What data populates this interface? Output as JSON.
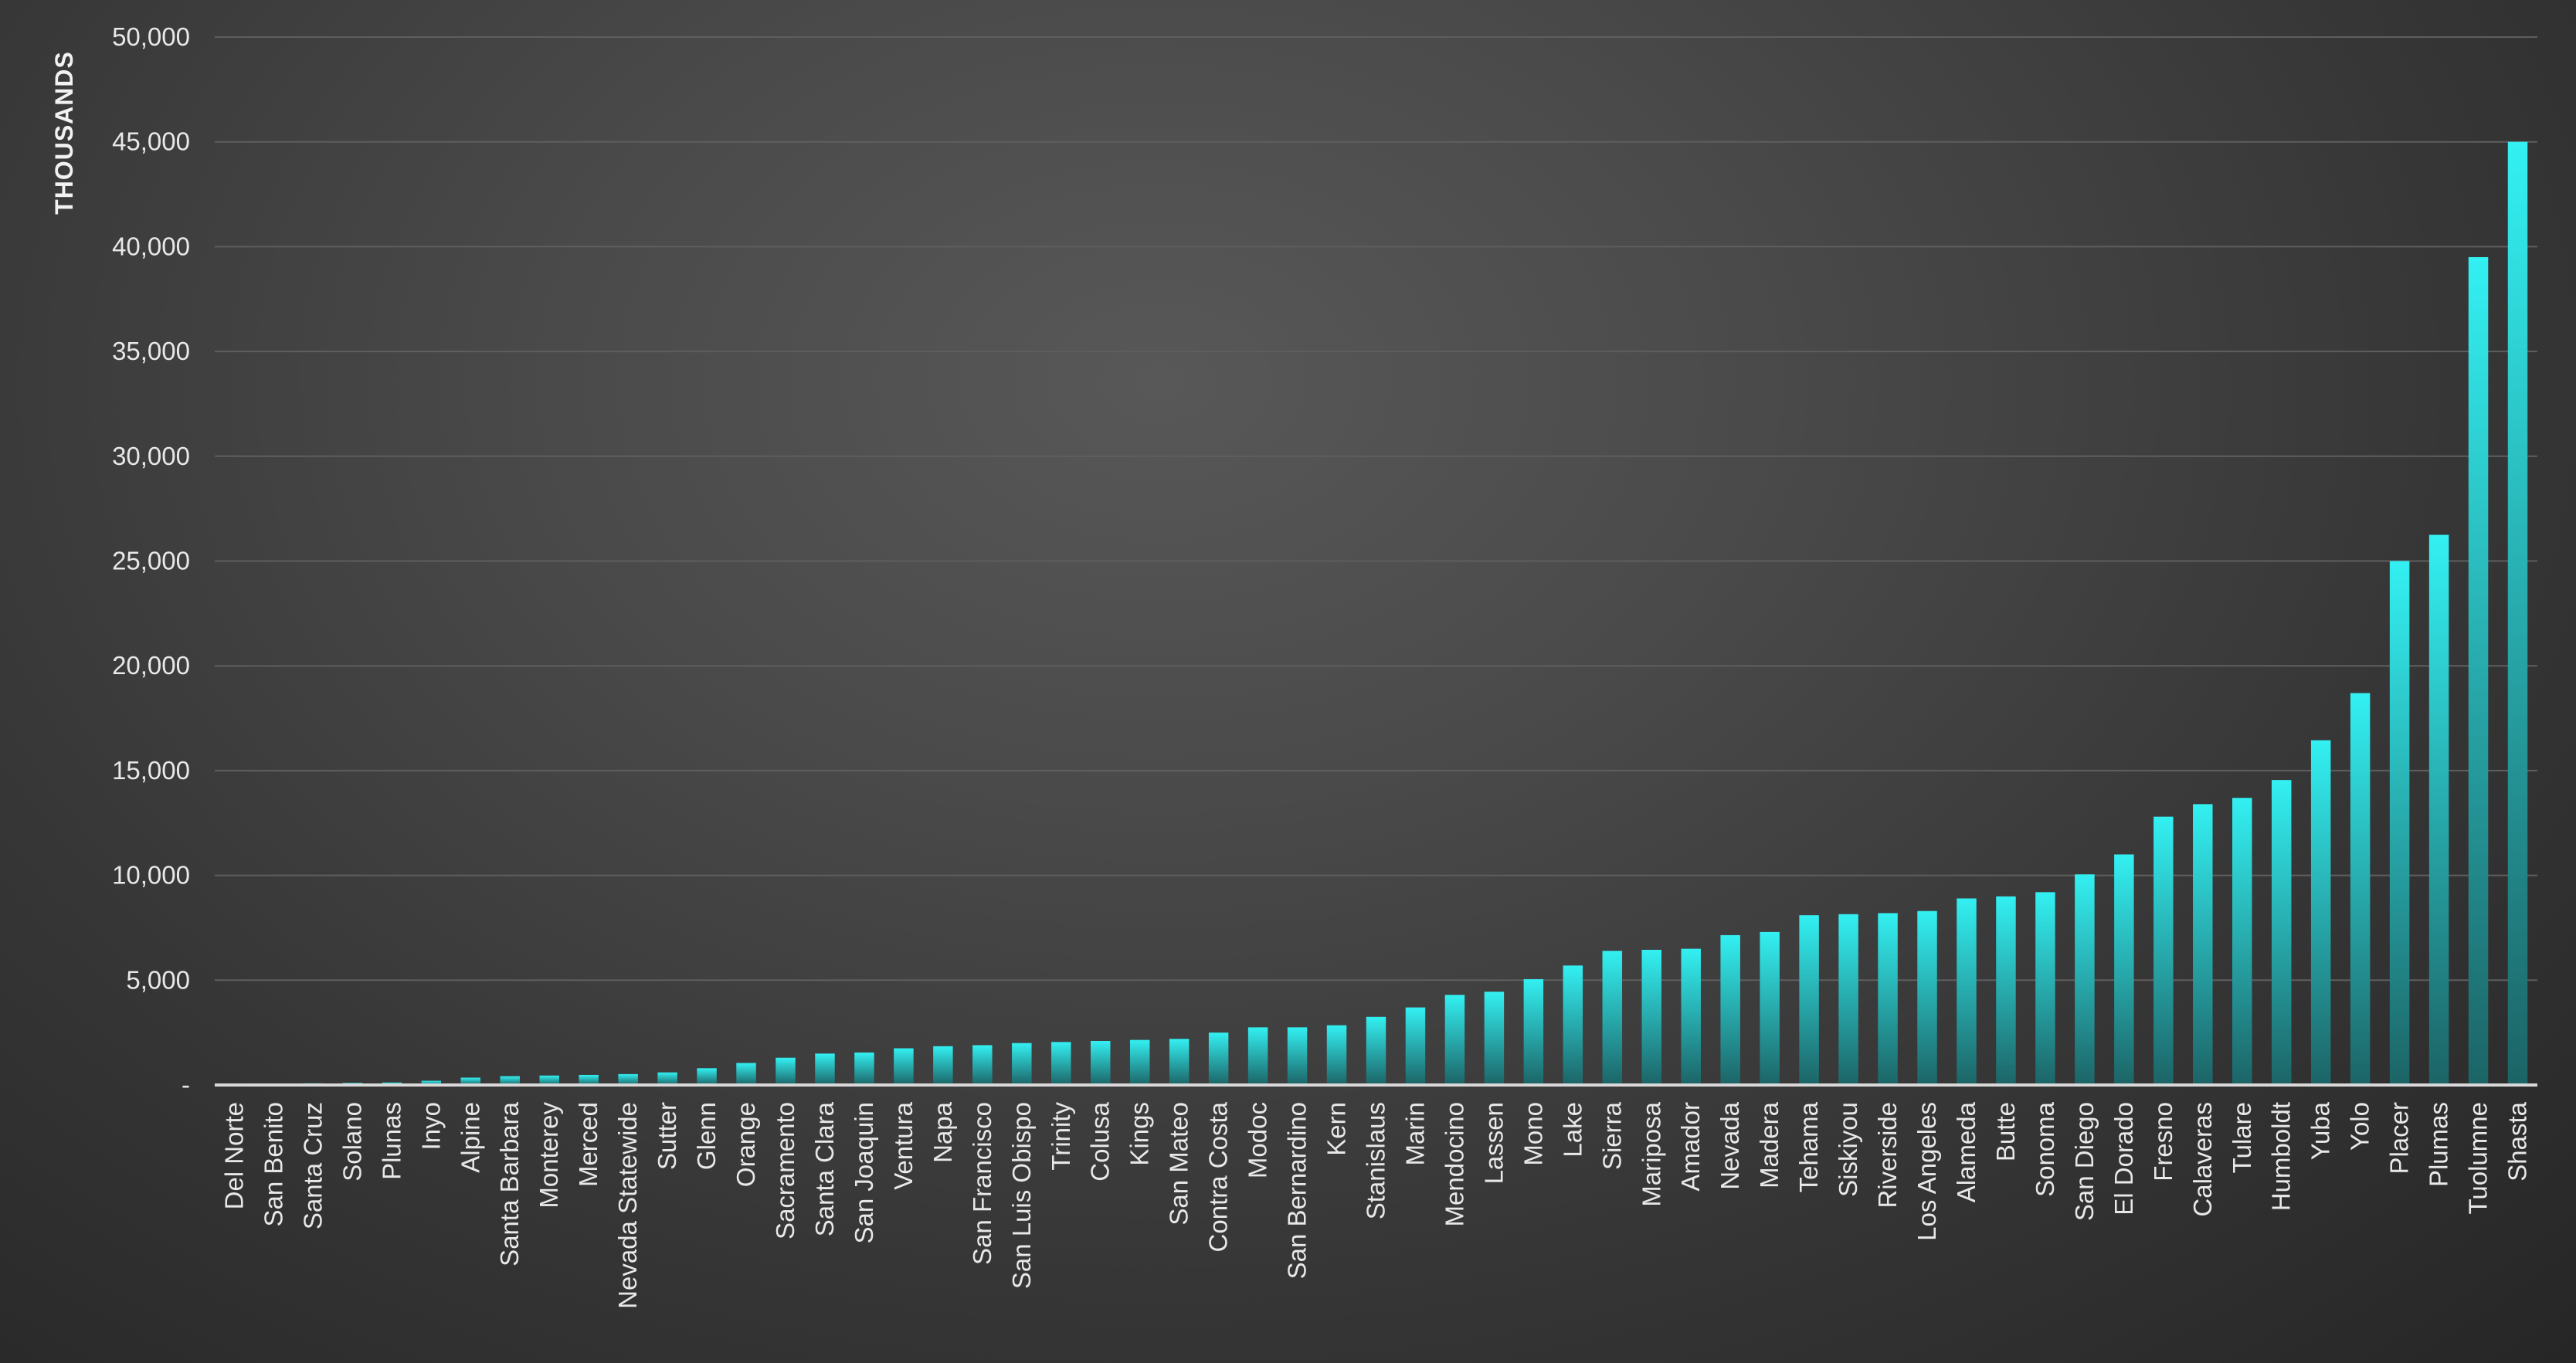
{
  "chart_data": {
    "type": "bar",
    "title": "",
    "xlabel": "",
    "ylabel": "THOUSANDS",
    "ylim": [
      0,
      50000
    ],
    "y_ticks": [
      0,
      5000,
      10000,
      15000,
      20000,
      25000,
      30000,
      35000,
      40000,
      45000,
      50000
    ],
    "y_tick_labels": [
      "-",
      "5,000",
      "10,000",
      "15,000",
      "20,000",
      "25,000",
      "30,000",
      "35,000",
      "40,000",
      "45,000",
      "50,000"
    ],
    "grid": true,
    "legend": "none",
    "bar_color_top": "#33f0f2",
    "bar_color_bottom": "#1c6466",
    "categories": [
      "Del Norte",
      "San Benito",
      "Santa Cruz",
      "Solano",
      "Plunas",
      "Inyo",
      "Alpine",
      "Santa Barbara",
      "Monterey",
      "Merced",
      "Nevada Statewide",
      "Sutter",
      "Glenn",
      "Orange",
      "Sacramento",
      "Santa Clara",
      "San Joaquin",
      "Ventura",
      "Napa",
      "San Francisco",
      "San Luis Obispo",
      "Trinity",
      "Colusa",
      "Kings",
      "San Mateo",
      "Contra Costa",
      "Modoc",
      "San Bernardino",
      "Kern",
      "Stanislaus",
      "Marin",
      "Mendocino",
      "Lassen",
      "Mono",
      "Lake",
      "Sierra",
      "Mariposa",
      "Amador",
      "Nevada",
      "Madera",
      "Tehama",
      "Siskiyou",
      "Riverside",
      "Los Angeles",
      "Alameda",
      "Butte",
      "Sonoma",
      "San Diego",
      "El Dorado",
      "Fresno",
      "Calaveras",
      "Tulare",
      "Humboldt",
      "Yuba",
      "Yolo",
      "Placer",
      "Plumas",
      "Tuolumne",
      "Shasta"
    ],
    "values": [
      30,
      60,
      80,
      100,
      120,
      200,
      350,
      420,
      450,
      480,
      520,
      600,
      800,
      1050,
      1300,
      1500,
      1550,
      1750,
      1850,
      1900,
      2000,
      2050,
      2100,
      2150,
      2200,
      2500,
      2750,
      2750,
      2850,
      3250,
      3700,
      4300,
      4450,
      5050,
      5700,
      6400,
      6450,
      6500,
      7150,
      7300,
      8100,
      8150,
      8200,
      8300,
      8900,
      9000,
      9200,
      10050,
      11000,
      12800,
      13400,
      13700,
      14550,
      16450,
      18700,
      25000,
      26250,
      39500,
      45000
    ]
  }
}
